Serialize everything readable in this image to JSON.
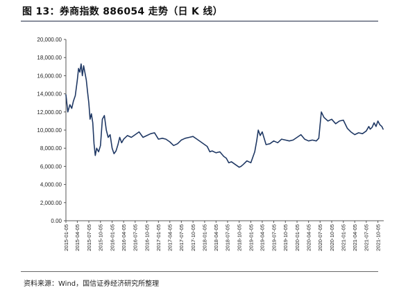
{
  "figure": {
    "title": "图 13：券商指数 886054 走势（日 K 线）",
    "source": "资料来源：Wind，国信证券经济研究所整理"
  },
  "chart_data": {
    "type": "line",
    "title": "",
    "xlabel": "",
    "ylabel": "",
    "ylim": [
      0,
      20000
    ],
    "yticks": [
      0,
      2000,
      4000,
      6000,
      8000,
      10000,
      12000,
      14000,
      16000,
      18000,
      20000
    ],
    "ytick_labels": [
      "0.00",
      "2,000.00",
      "4,000.00",
      "6,000.00",
      "8,000.00",
      "10,000.00",
      "12,000.00",
      "14,000.00",
      "16,000.00",
      "18,000.00",
      "20,000.00"
    ],
    "xlim": [
      "2015-01-05",
      "2021-11-20"
    ],
    "xtick_labels": [
      "2015-01-05",
      "2015-04-05",
      "2015-07-05",
      "2015-10-05",
      "2016-01-05",
      "2016-04-05",
      "2016-07-05",
      "2016-10-05",
      "2017-01-05",
      "2017-04-05",
      "2017-07-05",
      "2017-10-05",
      "2018-01-05",
      "2018-04-05",
      "2018-07-05",
      "2018-10-05",
      "2019-01-05",
      "2019-04-05",
      "2019-07-05",
      "2019-10-05",
      "2020-01-05",
      "2020-04-05",
      "2020-07-05",
      "2020-10-05",
      "2021-01-05",
      "2021-04-05",
      "2021-07-05",
      "2021-10-05"
    ],
    "grid": false,
    "legend": "none",
    "colors": {
      "line": "#1f3864",
      "axis": "#555555"
    },
    "series": [
      {
        "x": [
          "2015-01-05",
          "2015-01-20",
          "2015-02-05",
          "2015-02-20",
          "2015-03-05",
          "2015-03-20",
          "2015-04-05",
          "2015-04-15",
          "2015-04-25",
          "2015-05-05",
          "2015-05-15",
          "2015-05-25",
          "2015-06-05",
          "2015-06-15",
          "2015-06-25",
          "2015-07-05",
          "2015-07-15",
          "2015-07-25",
          "2015-08-05",
          "2015-08-15",
          "2015-08-25",
          "2015-09-05",
          "2015-09-20",
          "2015-10-05",
          "2015-10-20",
          "2015-11-05",
          "2015-11-20",
          "2015-12-05",
          "2015-12-20",
          "2016-01-05",
          "2016-01-20",
          "2016-02-05",
          "2016-02-20",
          "2016-03-05",
          "2016-03-20",
          "2016-04-05",
          "2016-05-05",
          "2016-06-05",
          "2016-07-05",
          "2016-08-05",
          "2016-09-05",
          "2016-10-05",
          "2016-11-05",
          "2016-12-05",
          "2017-01-05",
          "2017-02-05",
          "2017-03-05",
          "2017-04-05",
          "2017-05-05",
          "2017-06-05",
          "2017-07-05",
          "2017-08-05",
          "2017-09-05",
          "2017-10-05",
          "2017-11-05",
          "2017-12-05",
          "2018-01-05",
          "2018-01-25",
          "2018-02-15",
          "2018-03-05",
          "2018-04-05",
          "2018-05-05",
          "2018-06-05",
          "2018-06-25",
          "2018-07-15",
          "2018-08-05",
          "2018-09-05",
          "2018-10-05",
          "2018-10-20",
          "2018-11-05",
          "2018-12-05",
          "2019-01-05",
          "2019-02-05",
          "2019-02-20",
          "2019-03-05",
          "2019-03-20",
          "2019-04-05",
          "2019-05-05",
          "2019-06-05",
          "2019-07-05",
          "2019-08-05",
          "2019-09-05",
          "2019-10-05",
          "2019-11-05",
          "2019-12-05",
          "2020-01-05",
          "2020-02-05",
          "2020-03-05",
          "2020-04-05",
          "2020-05-05",
          "2020-06-05",
          "2020-06-25",
          "2020-07-05",
          "2020-07-15",
          "2020-08-05",
          "2020-09-05",
          "2020-10-05",
          "2020-11-05",
          "2020-12-05",
          "2021-01-05",
          "2021-02-05",
          "2021-03-05",
          "2021-04-05",
          "2021-05-05",
          "2021-06-05",
          "2021-07-05",
          "2021-07-25",
          "2021-08-05",
          "2021-08-20",
          "2021-09-05",
          "2021-09-20",
          "2021-10-05",
          "2021-10-20",
          "2021-11-05",
          "2021-11-15"
        ],
        "values": [
          13900,
          12000,
          12800,
          12400,
          13200,
          13800,
          15500,
          16800,
          16400,
          17300,
          16000,
          17100,
          16300,
          15500,
          14200,
          13000,
          11200,
          11800,
          10800,
          8500,
          7200,
          8000,
          7600,
          8300,
          11200,
          11600,
          10000,
          9200,
          9500,
          8000,
          7400,
          7700,
          8400,
          9200,
          8600,
          9000,
          9400,
          9200,
          9500,
          9800,
          9200,
          9400,
          9600,
          9700,
          9000,
          9100,
          9000,
          8700,
          8300,
          8500,
          8900,
          9100,
          9200,
          9300,
          9000,
          8700,
          8400,
          8200,
          7600,
          7700,
          7500,
          7600,
          7100,
          6900,
          6400,
          6500,
          6200,
          5900,
          6000,
          6200,
          6600,
          6400,
          7600,
          8800,
          10000,
          9400,
          9800,
          8400,
          8500,
          8800,
          8600,
          9000,
          8900,
          8800,
          8900,
          9200,
          9500,
          9000,
          8800,
          8900,
          8800,
          9100,
          10600,
          12000,
          11400,
          11000,
          11200,
          10700,
          11000,
          11100,
          10200,
          9800,
          9500,
          9700,
          9600,
          9900,
          10400,
          10100,
          10300,
          10800,
          10400,
          11000,
          10600,
          10400,
          10100
        ]
      }
    ]
  }
}
